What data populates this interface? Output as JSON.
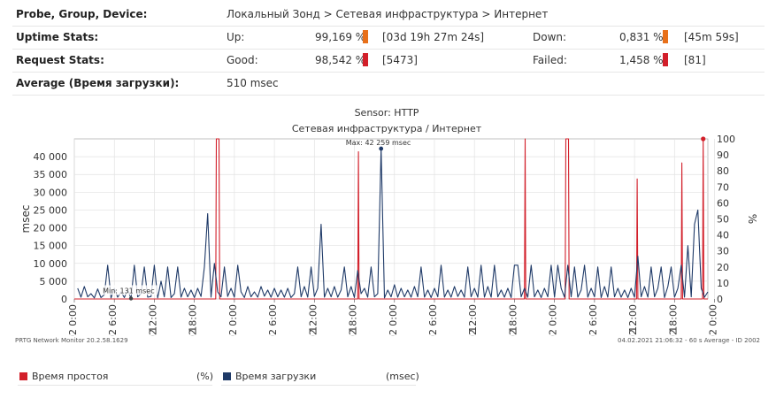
{
  "stats": {
    "probe": {
      "label": "Probe, Group, Device:",
      "value": "Локальный Зонд > Сетевая инфраструктура > Интернет"
    },
    "uptime": {
      "label": "Uptime Stats:",
      "up_label": "Up:",
      "up_value": "99,169 %",
      "up_duration": "[03d 19h 27m 24s]",
      "down_label": "Down:",
      "down_value": "0,831 %",
      "down_duration": "[45m 59s]",
      "up_fraction": 0.99169,
      "down_fraction": 0.00831
    },
    "request": {
      "label": "Request Stats:",
      "good_label": "Good:",
      "good_value": "98,542 %",
      "good_count": "[5473]",
      "failed_label": "Failed:",
      "failed_value": "1,458 %",
      "failed_count": "[81]",
      "good_fraction": 0.98542,
      "failed_fraction": 0.01458
    },
    "average": {
      "label": "Average (Время загрузки):",
      "value": "510 msec"
    }
  },
  "chart_data": {
    "type": "line",
    "title": "Sensor: HTTP",
    "subtitle": "Сетевая инфраструктура / Интернет",
    "ylabel_left": "msec",
    "ylabel_right": "%",
    "y_left_ticks": [
      "0",
      "5 000",
      "10 000",
      "15 000",
      "20 000",
      "25 000",
      "30 000",
      "35 000",
      "40 000"
    ],
    "y_left_range": [
      0,
      45000
    ],
    "y_right_ticks": [
      "0",
      "10",
      "20",
      "30",
      "40",
      "50",
      "60",
      "70",
      "80",
      "90",
      "100"
    ],
    "y_right_range": [
      0,
      100
    ],
    "x_ticks": [
      "01.02",
      "01.02",
      "01.02",
      "01.02",
      "01.02",
      "02.02",
      "02.02",
      "02.02",
      "02.02",
      "03.02",
      "03.02",
      "03.02",
      "03.02",
      "04.02",
      "04.02",
      "04.02",
      "04.02"
    ],
    "x_tick_times": [
      "0:00",
      "6:00",
      "12:00",
      "18:00",
      "0:00",
      "6:00",
      "12:00",
      "18:00",
      "0:00",
      "6:00",
      "12:00",
      "18:00",
      "0:00",
      "6:00",
      "12:00",
      "18:00",
      "0:00"
    ],
    "x_range_hours": [
      0,
      95
    ],
    "grid": true,
    "annotations": {
      "max": "Max: 42 259 msec",
      "min": "Min: 131 msec",
      "max_hour": 46.0,
      "max_value": 42259,
      "min_hour": 8.5,
      "min_value": 131
    },
    "series": [
      {
        "name": "Время простоя",
        "unit": "(%)",
        "color": "#d21f2a",
        "axis": "right",
        "points": [
          [
            0,
            0
          ],
          [
            21.2,
            0
          ],
          [
            21.3,
            100
          ],
          [
            21.7,
            100
          ],
          [
            21.8,
            0
          ],
          [
            42.5,
            0
          ],
          [
            42.6,
            92
          ],
          [
            42.7,
            0
          ],
          [
            67.5,
            0
          ],
          [
            67.6,
            100
          ],
          [
            67.7,
            0
          ],
          [
            73.6,
            0
          ],
          [
            73.7,
            100
          ],
          [
            74.1,
            100
          ],
          [
            74.2,
            0
          ],
          [
            84.3,
            0
          ],
          [
            84.4,
            75
          ],
          [
            84.5,
            0
          ],
          [
            91.0,
            0
          ],
          [
            91.1,
            85
          ],
          [
            91.2,
            0
          ],
          [
            94.2,
            0
          ],
          [
            94.3,
            100
          ],
          [
            94.4,
            0
          ],
          [
            95,
            0
          ]
        ]
      },
      {
        "name": "Время загрузки",
        "unit": "(msec)",
        "color": "#1f3a68",
        "axis": "left",
        "points": [
          [
            0.5,
            3000
          ],
          [
            1.0,
            500
          ],
          [
            1.5,
            3500
          ],
          [
            2.0,
            600
          ],
          [
            2.5,
            1500
          ],
          [
            3.0,
            300
          ],
          [
            3.5,
            2800
          ],
          [
            4.0,
            400
          ],
          [
            4.5,
            1200
          ],
          [
            5.0,
            9500
          ],
          [
            5.5,
            300
          ],
          [
            6.0,
            3000
          ],
          [
            6.5,
            500
          ],
          [
            7.0,
            2000
          ],
          [
            7.5,
            400
          ],
          [
            8.0,
            2500
          ],
          [
            8.5,
            131
          ],
          [
            9.0,
            9500
          ],
          [
            9.5,
            600
          ],
          [
            10.0,
            1500
          ],
          [
            10.5,
            9000
          ],
          [
            11.0,
            500
          ],
          [
            11.5,
            700
          ],
          [
            12.0,
            9500
          ],
          [
            12.5,
            300
          ],
          [
            13.0,
            5000
          ],
          [
            13.5,
            600
          ],
          [
            14.0,
            9000
          ],
          [
            14.5,
            400
          ],
          [
            15.0,
            1500
          ],
          [
            15.5,
            9000
          ],
          [
            16.0,
            500
          ],
          [
            16.5,
            3000
          ],
          [
            17.0,
            600
          ],
          [
            17.5,
            2500
          ],
          [
            18.0,
            400
          ],
          [
            18.5,
            3000
          ],
          [
            19.0,
            700
          ],
          [
            19.5,
            9000
          ],
          [
            20.0,
            24000
          ],
          [
            20.5,
            500
          ],
          [
            21.0,
            10000
          ],
          [
            21.5,
            2000
          ],
          [
            22.0,
            600
          ],
          [
            22.5,
            9000
          ],
          [
            23.0,
            700
          ],
          [
            23.5,
            3000
          ],
          [
            24.0,
            500
          ],
          [
            24.5,
            9500
          ],
          [
            25.0,
            2000
          ],
          [
            25.5,
            400
          ],
          [
            26.0,
            3500
          ],
          [
            26.5,
            600
          ],
          [
            27.0,
            2000
          ],
          [
            27.5,
            500
          ],
          [
            28.0,
            3500
          ],
          [
            28.5,
            800
          ],
          [
            29.0,
            2500
          ],
          [
            29.5,
            500
          ],
          [
            30.0,
            3000
          ],
          [
            30.5,
            600
          ],
          [
            31.0,
            2500
          ],
          [
            31.5,
            500
          ],
          [
            32.0,
            3000
          ],
          [
            32.5,
            400
          ],
          [
            33.0,
            1500
          ],
          [
            33.5,
            9000
          ],
          [
            34.0,
            600
          ],
          [
            34.5,
            3500
          ],
          [
            35.0,
            500
          ],
          [
            35.5,
            9000
          ],
          [
            36.0,
            700
          ],
          [
            36.5,
            3000
          ],
          [
            37.0,
            21000
          ],
          [
            37.5,
            500
          ],
          [
            38.0,
            3000
          ],
          [
            38.5,
            600
          ],
          [
            39.0,
            3500
          ],
          [
            39.5,
            500
          ],
          [
            40.0,
            2500
          ],
          [
            40.5,
            9000
          ],
          [
            41.0,
            600
          ],
          [
            41.5,
            3500
          ],
          [
            42.0,
            400
          ],
          [
            42.5,
            8000
          ],
          [
            43.0,
            1500
          ],
          [
            43.5,
            3000
          ],
          [
            44.0,
            500
          ],
          [
            44.5,
            9000
          ],
          [
            45.0,
            600
          ],
          [
            45.5,
            1500
          ],
          [
            46.0,
            42259
          ],
          [
            46.5,
            300
          ],
          [
            47.0,
            2500
          ],
          [
            47.5,
            600
          ],
          [
            48.0,
            4000
          ],
          [
            48.5,
            500
          ],
          [
            49.0,
            3000
          ],
          [
            49.5,
            600
          ],
          [
            50.0,
            2500
          ],
          [
            50.5,
            500
          ],
          [
            51.0,
            3500
          ],
          [
            51.5,
            600
          ],
          [
            52.0,
            9000
          ],
          [
            52.5,
            500
          ],
          [
            53.0,
            2500
          ],
          [
            53.5,
            400
          ],
          [
            54.0,
            3000
          ],
          [
            54.5,
            600
          ],
          [
            55.0,
            9500
          ],
          [
            55.5,
            500
          ],
          [
            56.0,
            2500
          ],
          [
            56.5,
            500
          ],
          [
            57.0,
            3500
          ],
          [
            57.5,
            700
          ],
          [
            58.0,
            2500
          ],
          [
            58.5,
            500
          ],
          [
            59.0,
            9000
          ],
          [
            59.5,
            600
          ],
          [
            60.0,
            3000
          ],
          [
            60.5,
            500
          ],
          [
            61.0,
            9500
          ],
          [
            61.5,
            500
          ],
          [
            62.0,
            3500
          ],
          [
            62.5,
            500
          ],
          [
            63.0,
            9500
          ],
          [
            63.5,
            600
          ],
          [
            64.0,
            2500
          ],
          [
            64.5,
            500
          ],
          [
            65.0,
            3000
          ],
          [
            65.5,
            400
          ],
          [
            66.0,
            9500
          ],
          [
            66.5,
            9500
          ],
          [
            67.0,
            600
          ],
          [
            67.5,
            3000
          ],
          [
            68.0,
            500
          ],
          [
            68.5,
            9500
          ],
          [
            69.0,
            600
          ],
          [
            69.5,
            2500
          ],
          [
            70.0,
            400
          ],
          [
            70.5,
            3000
          ],
          [
            71.0,
            600
          ],
          [
            71.5,
            9500
          ],
          [
            72.0,
            500
          ],
          [
            72.5,
            9500
          ],
          [
            73.0,
            3000
          ],
          [
            73.5,
            500
          ],
          [
            74.0,
            9500
          ],
          [
            74.5,
            600
          ],
          [
            75.0,
            9000
          ],
          [
            75.5,
            500
          ],
          [
            76.0,
            2500
          ],
          [
            76.5,
            9500
          ],
          [
            77.0,
            500
          ],
          [
            77.5,
            3000
          ],
          [
            78.0,
            600
          ],
          [
            78.5,
            9000
          ],
          [
            79.0,
            400
          ],
          [
            79.5,
            3500
          ],
          [
            80.0,
            500
          ],
          [
            80.5,
            9000
          ],
          [
            81.0,
            600
          ],
          [
            81.5,
            3000
          ],
          [
            82.0,
            500
          ],
          [
            82.5,
            2500
          ],
          [
            83.0,
            400
          ],
          [
            83.5,
            3000
          ],
          [
            84.0,
            500
          ],
          [
            84.5,
            12000
          ],
          [
            85.0,
            600
          ],
          [
            85.5,
            3500
          ],
          [
            86.0,
            500
          ],
          [
            86.5,
            9000
          ],
          [
            87.0,
            600
          ],
          [
            87.5,
            3000
          ],
          [
            88.0,
            9000
          ],
          [
            88.5,
            400
          ],
          [
            89.0,
            3500
          ],
          [
            89.5,
            9000
          ],
          [
            90.0,
            500
          ],
          [
            90.5,
            3000
          ],
          [
            91.0,
            9500
          ],
          [
            91.5,
            500
          ],
          [
            92.0,
            15000
          ],
          [
            92.5,
            600
          ],
          [
            93.0,
            21000
          ],
          [
            93.5,
            25000
          ],
          [
            94.0,
            3000
          ],
          [
            94.5,
            500
          ],
          [
            95.0,
            2000
          ]
        ]
      }
    ]
  },
  "footer": {
    "left": "PRTG Network Monitor 20.2.58.1629",
    "right": "04.02.2021 21:06:32 - 60 s Average - ID 2002"
  },
  "legend": [
    {
      "name": "Время простоя",
      "unit": "(%)",
      "color": "#d21f2a"
    },
    {
      "name": "Время загрузки",
      "unit": "(msec)",
      "color": "#1f3a68"
    }
  ]
}
